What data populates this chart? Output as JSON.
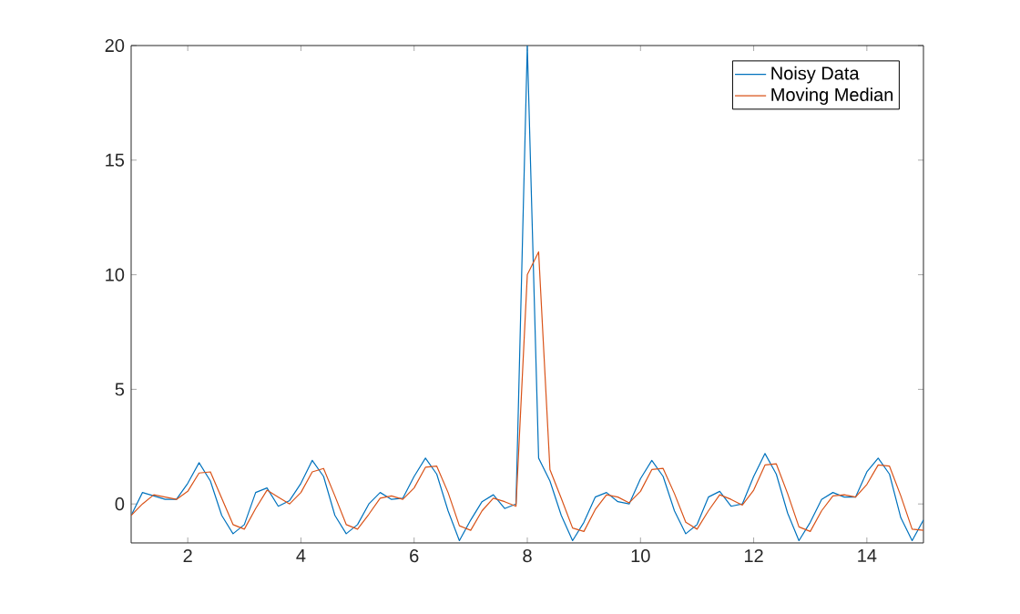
{
  "chart_data": {
    "type": "line",
    "x": [
      1.0,
      1.2,
      1.4,
      1.6,
      1.8,
      2.0,
      2.2,
      2.4,
      2.6,
      2.8,
      3.0,
      3.2,
      3.4,
      3.6,
      3.8,
      4.0,
      4.2,
      4.4,
      4.6,
      4.8,
      5.0,
      5.2,
      5.4,
      5.6,
      5.8,
      6.0,
      6.2,
      6.4,
      6.6,
      6.8,
      7.0,
      7.2,
      7.4,
      7.6,
      7.8,
      8.0,
      8.2,
      8.4,
      8.6,
      8.8,
      9.0,
      9.2,
      9.4,
      9.6,
      9.8,
      10.0,
      10.2,
      10.4,
      10.6,
      10.8,
      11.0,
      11.2,
      11.4,
      11.6,
      11.8,
      12.0,
      12.2,
      12.4,
      12.6,
      12.8,
      13.0,
      13.2,
      13.4,
      13.6,
      13.8,
      14.0,
      14.2,
      14.4,
      14.6,
      14.8,
      15.0
    ],
    "series": [
      {
        "name": "Noisy Data",
        "color": "#0072bd",
        "values": [
          -0.5,
          0.5,
          0.35,
          0.2,
          0.2,
          0.9,
          1.8,
          1.0,
          -0.5,
          -1.3,
          -0.9,
          0.5,
          0.7,
          -0.1,
          0.15,
          0.9,
          1.9,
          1.2,
          -0.5,
          -1.3,
          -0.9,
          0,
          0.5,
          0.2,
          0.25,
          1.2,
          2.0,
          1.3,
          -0.3,
          -1.6,
          -0.7,
          0.1,
          0.4,
          -0.2,
          0.0,
          20,
          2.0,
          1.0,
          -0.5,
          -1.6,
          -0.8,
          0.3,
          0.5,
          0.1,
          0.0,
          1.1,
          1.9,
          1.2,
          -0.3,
          -1.3,
          -0.9,
          0.3,
          0.55,
          -0.1,
          0.0,
          1.2,
          2.2,
          1.3,
          -0.4,
          -1.6,
          -0.8,
          0.2,
          0.5,
          0.3,
          0.3,
          1.4,
          2.0,
          1.3,
          -0.6,
          -1.6,
          -0.7
        ]
      },
      {
        "name": "Moving Median",
        "color": "#d95319",
        "values": [
          -0.5,
          0.0,
          0.4,
          0.3,
          0.2,
          0.55,
          1.35,
          1.4,
          0.25,
          -0.9,
          -1.1,
          -0.2,
          0.6,
          0.3,
          0.0,
          0.5,
          1.4,
          1.55,
          0.35,
          -0.9,
          -1.1,
          -0.45,
          0.25,
          0.35,
          0.2,
          0.7,
          1.6,
          1.65,
          0.5,
          -0.95,
          -1.15,
          -0.3,
          0.25,
          0.1,
          -0.1,
          10,
          11,
          1.5,
          0.25,
          -1.05,
          -1.2,
          -0.25,
          0.4,
          0.3,
          0.05,
          0.55,
          1.5,
          1.55,
          0.45,
          -0.8,
          -1.1,
          -0.3,
          0.4,
          0.2,
          -0.05,
          0.6,
          1.7,
          1.75,
          0.45,
          -1.0,
          -1.2,
          -0.3,
          0.35,
          0.4,
          0.3,
          0.85,
          1.7,
          1.65,
          0.35,
          -1.1,
          -1.15
        ]
      }
    ],
    "xlim": [
      1,
      15
    ],
    "ylim": [
      -1.7,
      20
    ],
    "xticks": [
      2,
      4,
      6,
      8,
      10,
      12,
      14
    ],
    "yticks": [
      0,
      5,
      10,
      15,
      20
    ],
    "legend": "top right",
    "grid": false,
    "marker": "none",
    "line_style": "solid"
  }
}
